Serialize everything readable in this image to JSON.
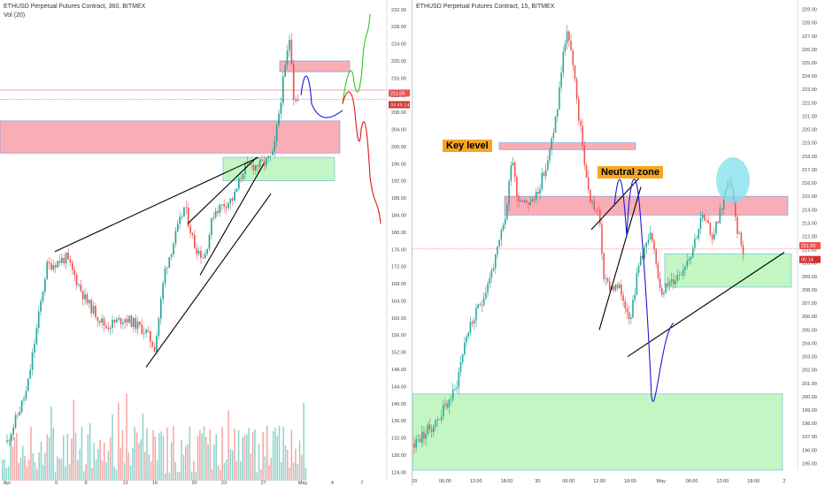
{
  "chart_data": [
    {
      "type": "candlestick",
      "title": "ETHUSD Perpetual Futures Contract, 360, BITMEX",
      "indicator": "Vol (20)",
      "y_ticks": [
        124.0,
        128.0,
        132.0,
        136.0,
        140.0,
        144.0,
        148.0,
        152.0,
        156.0,
        160.0,
        164.0,
        168.0,
        172.0,
        176.0,
        180.0,
        184.0,
        188.0,
        192.0,
        196.0,
        200.0,
        204.0,
        208.0,
        212.0,
        216.0,
        220.0,
        224.0,
        228.0,
        232.0
      ],
      "ylim": [
        122,
        233
      ],
      "x_ticks": [
        "Apr",
        "6",
        "9",
        "13",
        "16",
        "20",
        "23",
        "27",
        "May",
        "4",
        "7"
      ],
      "last_price": "211.05",
      "countdown": "03:45:14",
      "zones": [
        {
          "color": "red",
          "price_low": 198.5,
          "price_high": 206
        },
        {
          "color": "red",
          "price_low": 217.5,
          "price_high": 220
        },
        {
          "color": "green",
          "price_low": 192,
          "price_high": 197.5
        }
      ],
      "price_path": [
        {
          "x": "2020-04-01",
          "y": 131
        },
        {
          "x": "2020-04-03",
          "y": 143
        },
        {
          "x": "2020-04-05",
          "y": 172
        },
        {
          "x": "2020-04-07",
          "y": 174
        },
        {
          "x": "2020-04-09",
          "y": 164
        },
        {
          "x": "2020-04-11",
          "y": 158
        },
        {
          "x": "2020-04-13",
          "y": 160
        },
        {
          "x": "2020-04-15",
          "y": 157
        },
        {
          "x": "2020-04-16",
          "y": 153
        },
        {
          "x": "2020-04-17",
          "y": 171
        },
        {
          "x": "2020-04-19",
          "y": 186
        },
        {
          "x": "2020-04-20",
          "y": 177
        },
        {
          "x": "2020-04-21",
          "y": 174
        },
        {
          "x": "2020-04-22",
          "y": 185
        },
        {
          "x": "2020-04-24",
          "y": 188
        },
        {
          "x": "2020-04-25",
          "y": 195
        },
        {
          "x": "2020-04-27",
          "y": 196
        },
        {
          "x": "2020-04-28",
          "y": 198
        },
        {
          "x": "2020-04-29",
          "y": 215
        },
        {
          "x": "2020-04-29T18:00",
          "y": 227
        },
        {
          "x": "2020-04-30",
          "y": 212
        },
        {
          "x": "2020-04-30T12:00",
          "y": 211
        }
      ]
    },
    {
      "type": "candlestick",
      "title": "ETHUSD Perpetual Futures Contract, 15, BITMEX",
      "y_ticks": [
        195.0,
        196.0,
        197.0,
        198.0,
        199.0,
        200.0,
        201.0,
        202.0,
        203.0,
        204.0,
        205.0,
        206.0,
        207.0,
        208.0,
        209.0,
        210.0,
        211.0,
        212.0,
        213.0,
        214.0,
        215.0,
        216.0,
        217.0,
        218.0,
        219.0,
        220.0,
        221.0,
        222.0,
        223.0,
        224.0,
        225.0,
        226.0,
        227.0,
        228.0,
        229.0
      ],
      "ylim": [
        194.5,
        229.3
      ],
      "x_ticks": [
        "29",
        "06:00",
        "12:00",
        "18:00",
        "30",
        "06:00",
        "12:00",
        "18:00",
        "May",
        "06:00",
        "12:00",
        "18:00",
        "2"
      ],
      "last_price": "211.05",
      "countdown": "00:14",
      "annotations": [
        "Key level",
        "Neutral zone"
      ],
      "zones": [
        {
          "color": "red",
          "price_low": 218.5,
          "price_high": 219
        },
        {
          "color": "red",
          "price_low": 213.6,
          "price_high": 215
        },
        {
          "color": "green",
          "price_low": 208.2,
          "price_high": 210.7
        },
        {
          "color": "green",
          "price_low": 194.5,
          "price_high": 200.2
        }
      ],
      "price_path": [
        {
          "x": "2020-04-29T00:00",
          "y": 196.5
        },
        {
          "x": "2020-04-29T04:00",
          "y": 198.0
        },
        {
          "x": "2020-04-29T08:00",
          "y": 200.5
        },
        {
          "x": "2020-04-29T10:00",
          "y": 204.5
        },
        {
          "x": "2020-04-29T13:00",
          "y": 207.0
        },
        {
          "x": "2020-04-29T16:00",
          "y": 210.5
        },
        {
          "x": "2020-04-29T18:00",
          "y": 214.0
        },
        {
          "x": "2020-04-29T19:00",
          "y": 218.5
        },
        {
          "x": "2020-04-29T20:00",
          "y": 215.0
        },
        {
          "x": "2020-04-29T23:00",
          "y": 214.5
        },
        {
          "x": "2020-04-30T02:00",
          "y": 217.5
        },
        {
          "x": "2020-04-30T04:00",
          "y": 222.0
        },
        {
          "x": "2020-04-30T05:00",
          "y": 226.0
        },
        {
          "x": "2020-04-30T06:00",
          "y": 227.3
        },
        {
          "x": "2020-04-30T08:00",
          "y": 221.0
        },
        {
          "x": "2020-04-30T10:00",
          "y": 215.0
        },
        {
          "x": "2020-04-30T12:00",
          "y": 213.5
        },
        {
          "x": "2020-04-30T13:00",
          "y": 208.5
        },
        {
          "x": "2020-04-30T16:00",
          "y": 208.0
        },
        {
          "x": "2020-04-30T18:00",
          "y": 206.0
        },
        {
          "x": "2020-04-30T20:00",
          "y": 210.5
        },
        {
          "x": "2020-04-30T22:00",
          "y": 212.0
        },
        {
          "x": "2020-05-01T00:00",
          "y": 208.0
        },
        {
          "x": "2020-05-01T02:00",
          "y": 208.5
        },
        {
          "x": "2020-05-01T04:00",
          "y": 209.5
        },
        {
          "x": "2020-05-01T06:00",
          "y": 211.0
        },
        {
          "x": "2020-05-01T08:00",
          "y": 213.5
        },
        {
          "x": "2020-05-01T10:00",
          "y": 212.0
        },
        {
          "x": "2020-05-01T12:00",
          "y": 214.5
        },
        {
          "x": "2020-05-01T13:30",
          "y": 216.5
        },
        {
          "x": "2020-05-01T14:30",
          "y": 213.0
        },
        {
          "x": "2020-05-01T16:00",
          "y": 211.1
        }
      ]
    }
  ],
  "colors": {
    "up": "#26a69a",
    "down": "#ef5350",
    "red_zone": "#f8a0a8",
    "green_zone": "#b8f5b8",
    "price_line": "#ef5350",
    "projection_blue": "#1a1ad9",
    "projection_green": "#22cc22",
    "projection_red": "#e0181a",
    "highlight_circle": "#7fe0ee",
    "annotation_bg": "#f5a623"
  }
}
